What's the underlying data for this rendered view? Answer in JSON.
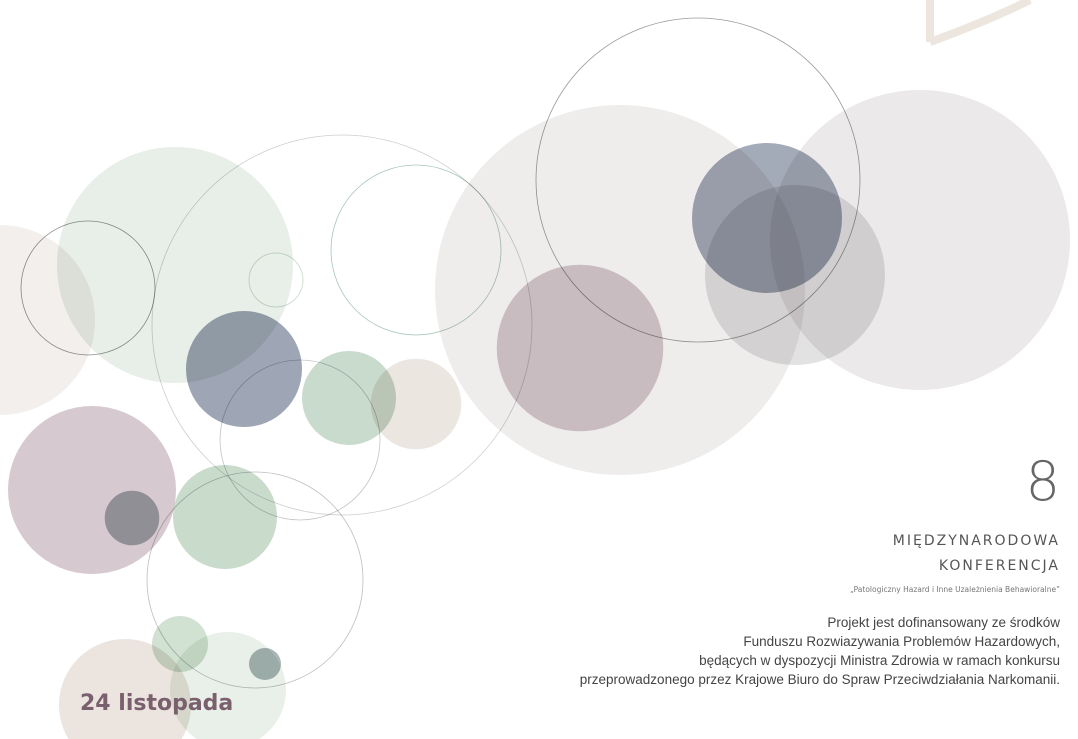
{
  "conference": {
    "number": "8",
    "title_line1": "MIĘDZYNARODOWA",
    "title_line2": "KONFERENCJA",
    "subtitle": "„Patologiczny Hazard i Inne Uzależnienia Behawioralne”"
  },
  "funding": {
    "lines": [
      "Projekt jest dofinansowany ze środków",
      "Funduszu Rozwiazywania Problemów Hazardowych,",
      "będących w dyspozycji Ministra Zdrowia w ramach konkursu",
      "przeprowadzonego przez Krajowe Biuro do Spraw Przeciwdziałania Narkomanii."
    ]
  },
  "date": "24 listopada"
}
